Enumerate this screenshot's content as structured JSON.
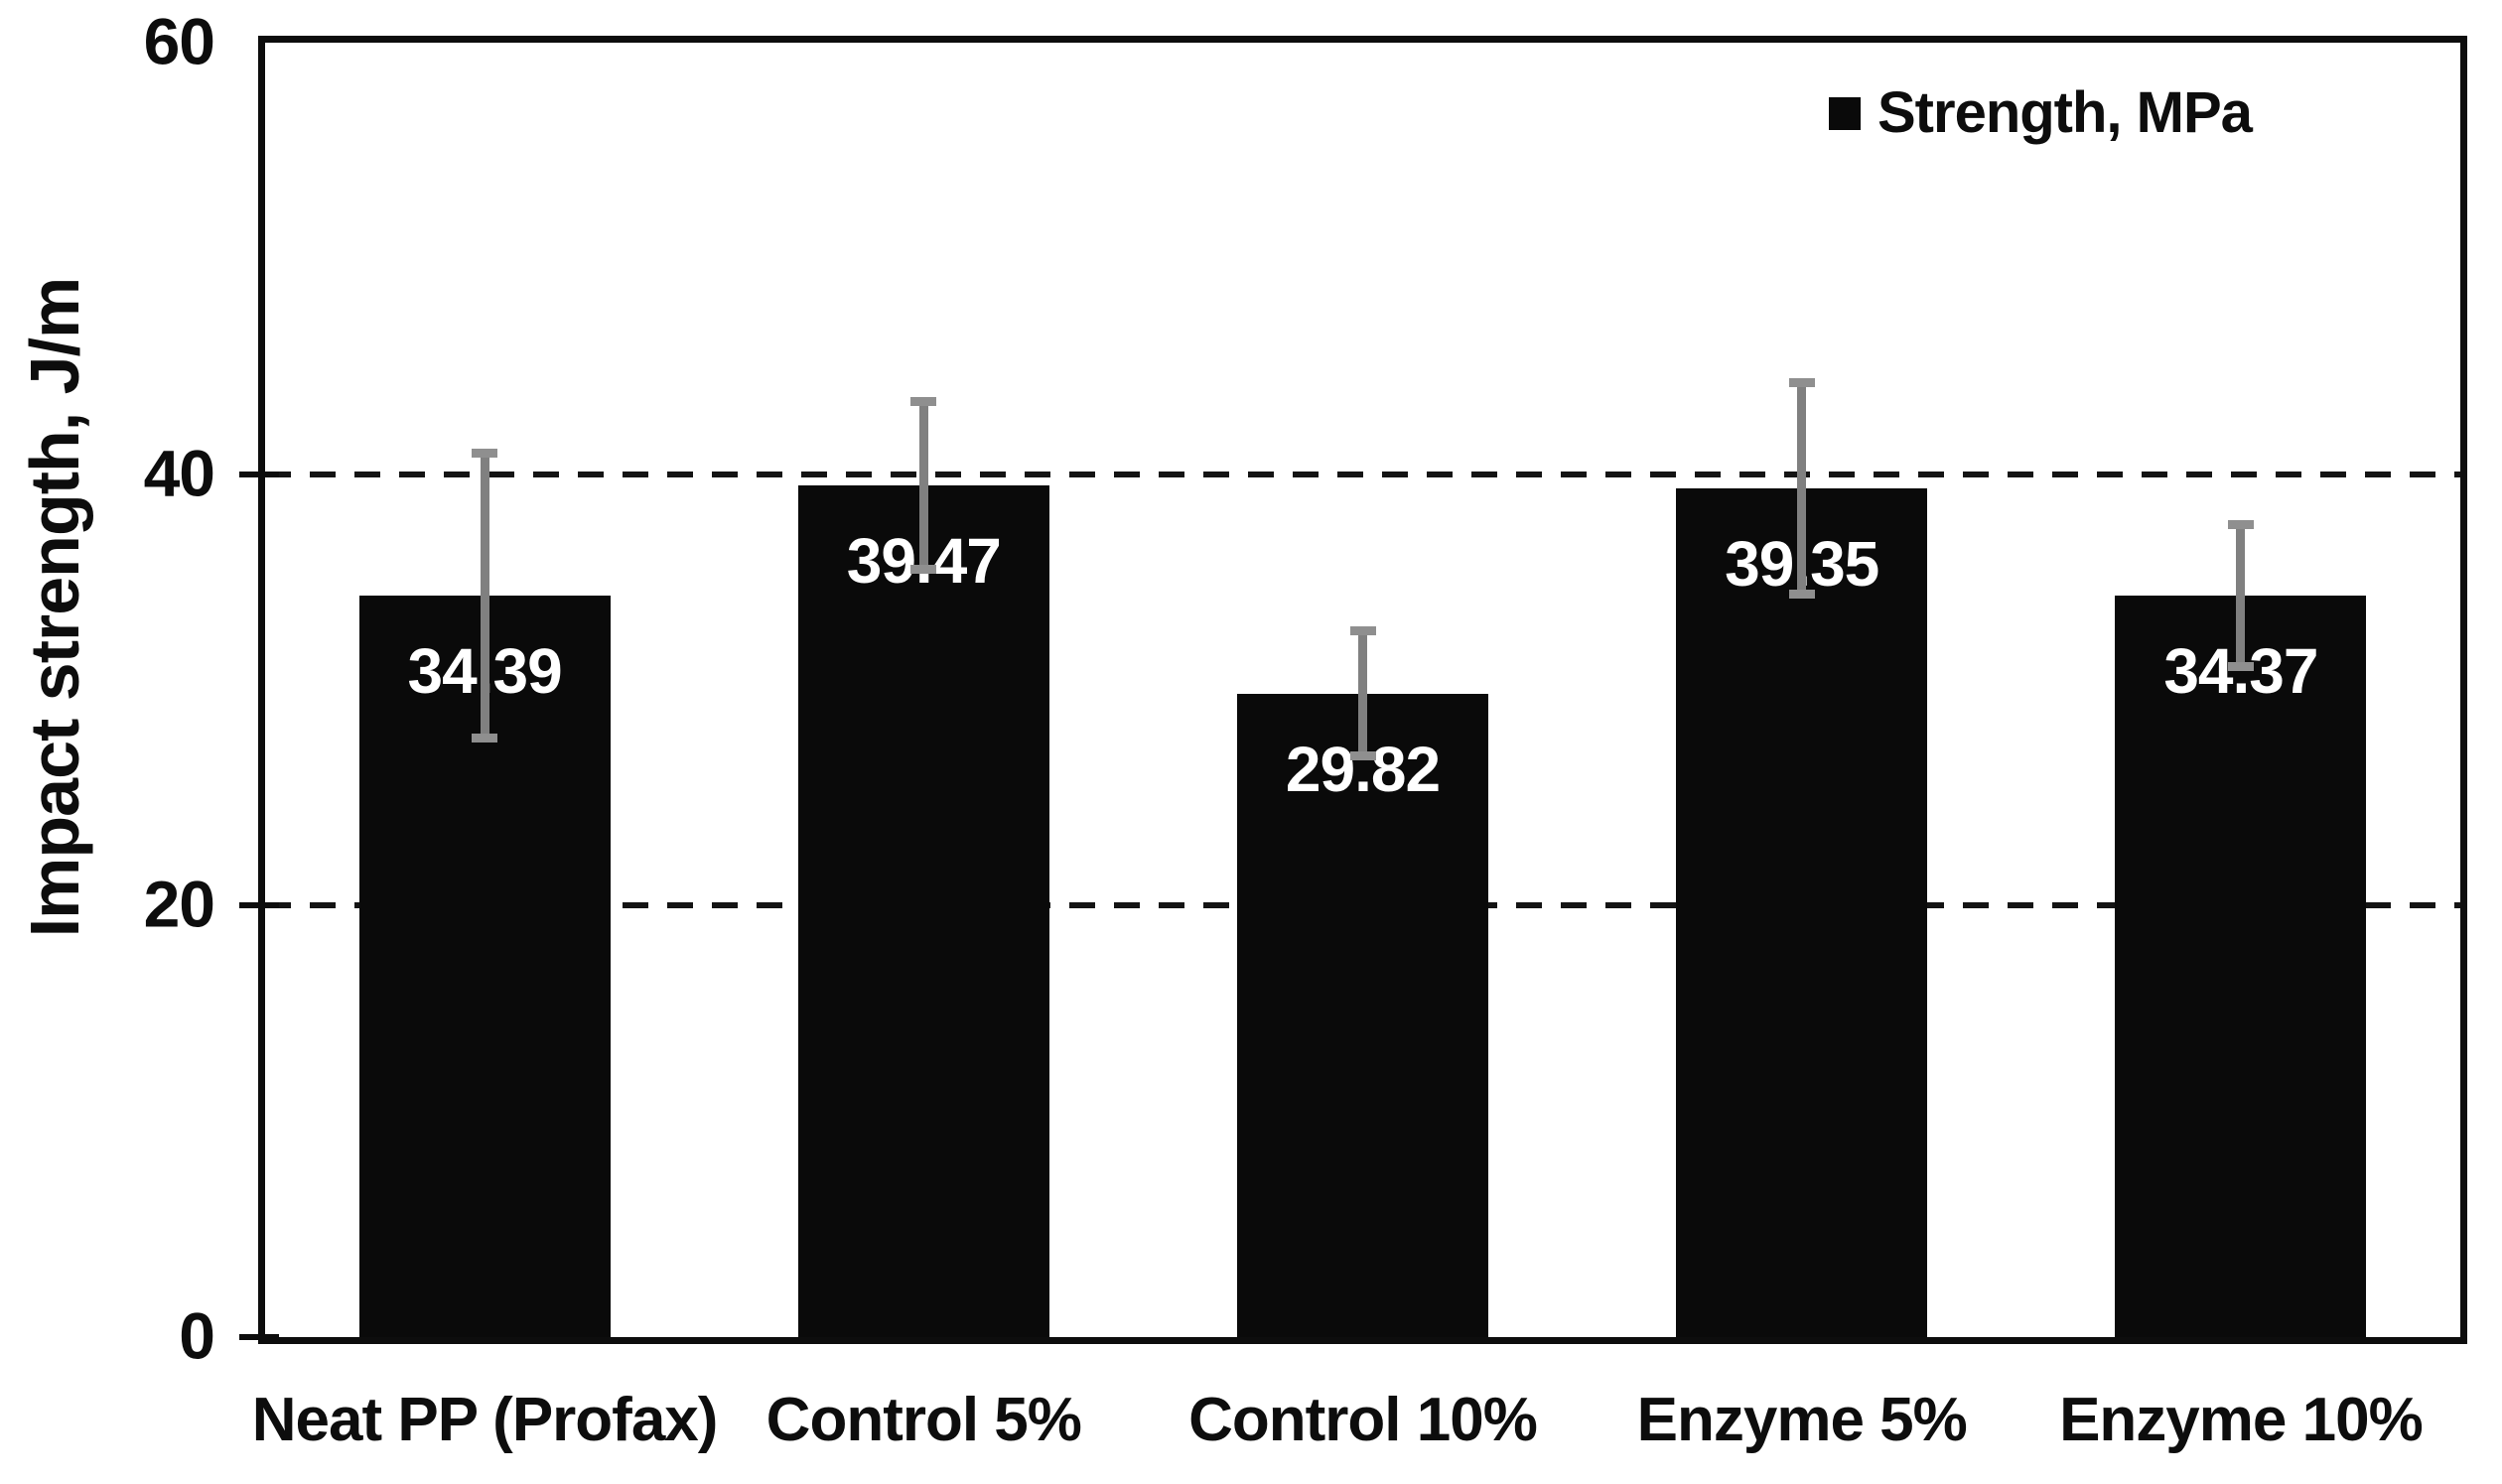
{
  "figure": {
    "background": "#ffffff",
    "text_color": "#0d0d0d"
  },
  "chart_data": {
    "type": "bar",
    "title": "",
    "categories": [
      "Neat PP (Profax)",
      "Control 5%",
      "Control 10%",
      "Enzyme 5%",
      "Enzyme 10%"
    ],
    "series": [
      {
        "name": "Strength, MPa",
        "values": [
          34.39,
          39.47,
          29.82,
          39.35,
          34.37
        ],
        "error_bars": [
          6.6,
          3.9,
          2.9,
          4.9,
          3.3
        ],
        "bar_color": "#0a0a0a"
      }
    ],
    "value_labels": [
      "34.39",
      "39.47",
      "29.82",
      "39.35",
      "34.37"
    ],
    "value_label_color": "#ffffff",
    "xlabel": "",
    "ylabel": "Impact strength, J/m",
    "ylim": [
      0,
      60
    ],
    "yticks": [
      "0",
      "20",
      "40",
      "60"
    ],
    "ytick_values": [
      0,
      20,
      40,
      60
    ],
    "gridlines": {
      "values": [
        20,
        40
      ],
      "style": "dashed",
      "color": "#141414"
    },
    "grid_on": true,
    "error_bar_color": "#808080",
    "error_cap_color": "#8f8f8f",
    "legend": {
      "position": "top-right-inside",
      "entries": [
        {
          "marker": "square",
          "marker_color": "#0a0a0a",
          "label": "Strength, MPa"
        }
      ]
    }
  }
}
